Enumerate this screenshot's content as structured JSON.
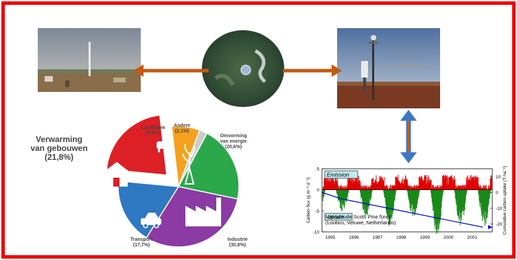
{
  "pie": {
    "main_label": "Verwarming\nvan gebouwen\n(21,8%)",
    "slices": [
      {
        "label": "Landbouw\n(7,6%)",
        "value": 7.6,
        "color": "#f4a21d"
      },
      {
        "label": "Andere\n(2,1%)",
        "value": 2.1,
        "color": "#cccccc"
      },
      {
        "label": "Omvorming\nvan energie\n(20,6%)",
        "value": 20.6,
        "color": "#2aa84a"
      },
      {
        "label": "Industrie\n(30,8%)",
        "value": 30.8,
        "color": "#8b3ba3"
      },
      {
        "label": "Transport\n(17,7%)",
        "value": 17.7,
        "color": "#2f78c2"
      },
      {
        "label": "Verwarming van gebouwen (21,8%)",
        "value": 21.8,
        "color": "#dd1f26"
      }
    ],
    "icons": [
      "house-icon",
      "cow-icon",
      "plant-icon",
      "factory-icon",
      "car-icon",
      "tower-icon"
    ]
  },
  "chart_data": {
    "type": "bar",
    "x_tick_labels": [
      "1995",
      "1996",
      "1997",
      "1998",
      "1999",
      "2000",
      "2001"
    ],
    "ylim": [
      -10,
      5
    ],
    "y_ticks": [
      5,
      0,
      -5,
      -10
    ],
    "ylabel": "Carbon flux (g m⁻² d⁻¹)",
    "y2lim": [
      -25,
      15
    ],
    "y2_ticks": [
      10,
      0,
      -10,
      -20
    ],
    "y2label": "Cumulative carbon uptake (T ha⁻¹)",
    "emission_label": "Emission",
    "uptake_label": "Uptake",
    "annotation": "Mid-latitude Scots Pine forest\n(Loobos, Veluwe, Netherlands)",
    "series": [
      {
        "name": "Emission",
        "color": "#e00000"
      },
      {
        "name": "Uptake",
        "color": "#1a8a1a"
      },
      {
        "color": "#0000cc",
        "x": [
          1994.7,
          1995.5,
          1996.5,
          1997.5,
          1998.5,
          1999.5,
          2000.5,
          2001.5
        ],
        "values": [
          0,
          -4,
          -7,
          -10,
          -13,
          -16,
          -19,
          -22
        ]
      }
    ],
    "seasonal_uptake_min": [
      {
        "year": 1995.5,
        "value": -5
      },
      {
        "year": 1996.5,
        "value": -6
      },
      {
        "year": 1997.5,
        "value": -8
      },
      {
        "year": 1998.5,
        "value": -6
      },
      {
        "year": 1999.5,
        "value": -10
      },
      {
        "year": 2000.5,
        "value": -8
      },
      {
        "year": 2001.5,
        "value": -8
      }
    ]
  },
  "colors": {
    "frame": "#ee0000",
    "arrow_brown": "#c45a10",
    "arrow_blue": "#3c78c8"
  }
}
